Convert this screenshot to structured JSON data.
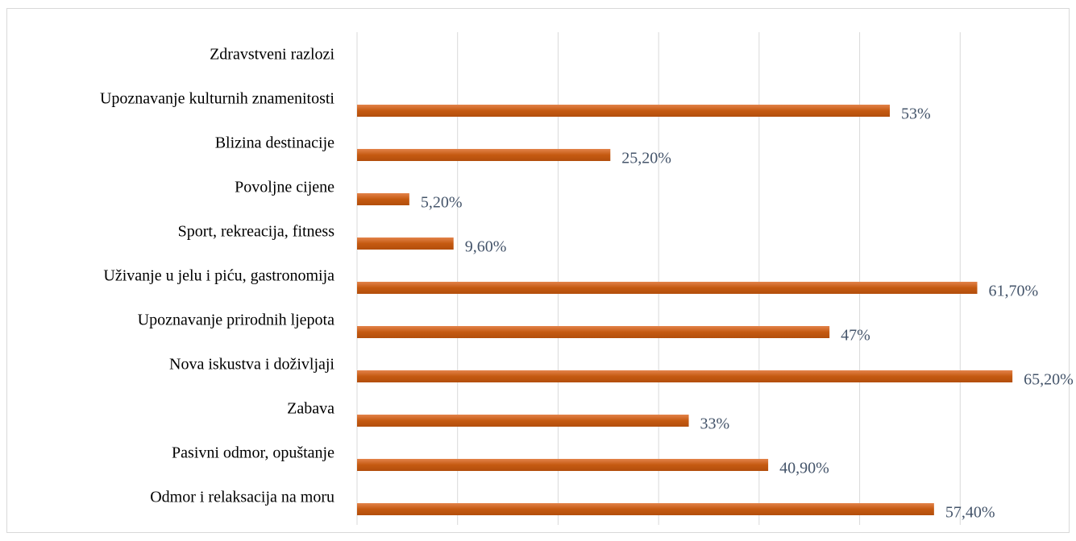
{
  "chart_data": {
    "type": "bar",
    "orientation": "horizontal",
    "categories": [
      "Zdravstveni razlozi",
      "Upoznavanje kulturnih znamenitosti",
      "Blizina destinacije",
      "Povoljne cijene",
      "Sport, rekreacija, fitness",
      "Uživanje u jelu i piću, gastronomija",
      "Upoznavanje prirodnih ljepota",
      "Nova iskustva i doživljaji",
      "Zabava",
      "Pasivni odmor, opuštanje",
      "Odmor i relaksacija na moru"
    ],
    "values": [
      null,
      53,
      25.2,
      5.2,
      9.6,
      61.7,
      47,
      65.2,
      33,
      40.9,
      57.4
    ],
    "value_labels": [
      null,
      "53%",
      "25,20%",
      "5,20%",
      "9,60%",
      "61,70%",
      "47%",
      "65,20%",
      "33%",
      "40,90%",
      "57,40%"
    ],
    "color": "#c55a11",
    "xlim": [
      0,
      70
    ],
    "xticks": [
      0,
      10,
      20,
      30,
      40,
      50,
      60
    ],
    "grid": true
  }
}
